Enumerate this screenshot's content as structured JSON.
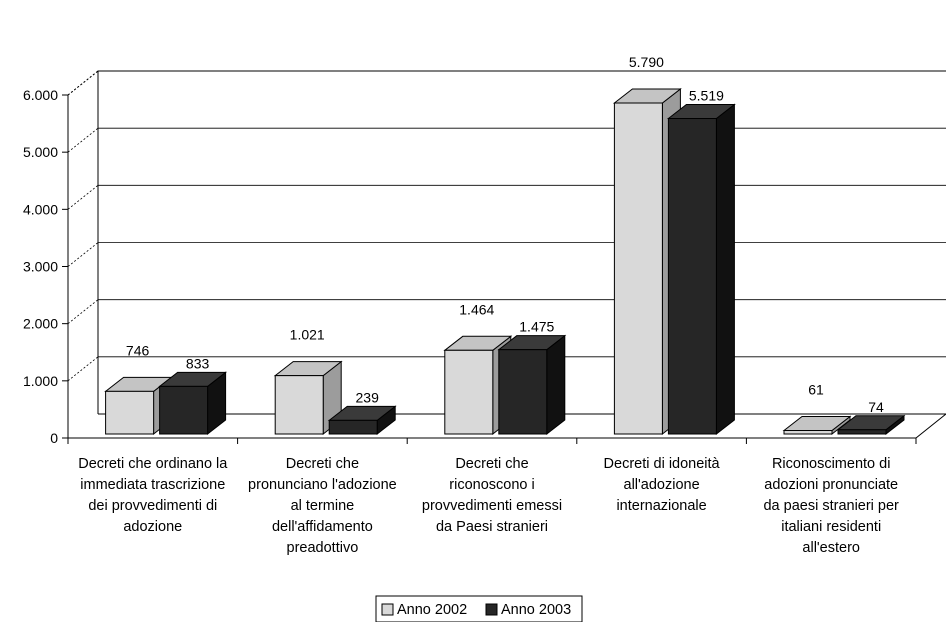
{
  "chart_data": {
    "type": "bar",
    "categories": [
      [
        "Decreti che ordinano la",
        "immediata trascrizione",
        "dei provvedimenti di",
        "adozione"
      ],
      [
        "Decreti che",
        "pronunciano l'adozione",
        "al termine",
        "dell'affidamento",
        "preadottivo"
      ],
      [
        "Decreti che",
        "riconoscono i",
        "provvedimenti emessi",
        "da Paesi stranieri"
      ],
      [
        "Decreti di idoneità",
        "all'adozione",
        "internazionale"
      ],
      [
        "Riconoscimento di",
        "adozioni pronunciate",
        "da paesi stranieri per",
        "italiani residenti",
        "all'estero"
      ]
    ],
    "series": [
      {
        "name": "Anno 2002",
        "values": [
          746,
          1021,
          1464,
          5790,
          61
        ],
        "labels": [
          "746",
          "1.021",
          "1.464",
          "5.790",
          "61"
        ],
        "color": "#d9d9d9"
      },
      {
        "name": "Anno 2003",
        "values": [
          833,
          239,
          1475,
          5519,
          74
        ],
        "labels": [
          "833",
          "239",
          "1.475",
          "5.519",
          "74"
        ],
        "color": "#262626"
      }
    ],
    "ylim": [
      0,
      6000
    ],
    "yticks": [
      0,
      1000,
      2000,
      3000,
      4000,
      5000,
      6000
    ],
    "ytick_labels": [
      "0",
      "1.000",
      "2.000",
      "3.000",
      "4.000",
      "5.000",
      "6.000"
    ],
    "grid": true,
    "three_d": true,
    "legend_position": "bottom"
  }
}
